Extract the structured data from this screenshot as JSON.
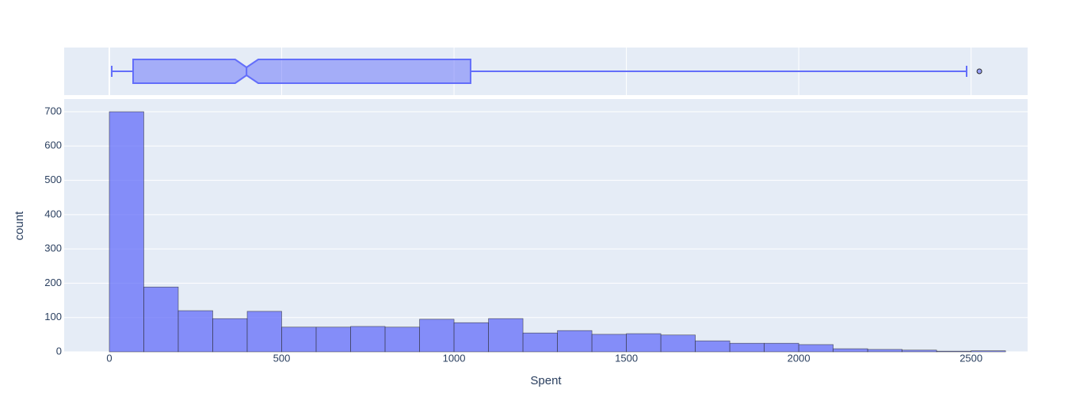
{
  "chart_data": {
    "type": "histogram",
    "x_label": "Spent",
    "y_label": "count",
    "color": "#636efa",
    "grid": true,
    "bins": [
      0,
      100,
      200,
      300,
      400,
      500,
      600,
      700,
      800,
      900,
      1000,
      1100,
      1200,
      1300,
      1400,
      1500,
      1600,
      1700,
      1800,
      1900,
      2000,
      2100,
      2200,
      2300,
      2400,
      2500,
      2600
    ],
    "values": [
      700,
      189,
      120,
      97,
      118,
      72,
      72,
      74,
      72,
      95,
      85,
      97,
      55,
      62,
      51,
      53,
      49,
      32,
      25,
      25,
      21,
      9,
      7,
      5,
      2,
      3
    ],
    "xlim": [
      -131,
      2664
    ],
    "xticks": [
      0,
      500,
      1000,
      1500,
      2000,
      2500
    ],
    "ylim": [
      0,
      737
    ],
    "yticks": [
      0,
      100,
      200,
      300,
      400,
      500,
      600,
      700
    ],
    "box": {
      "min": 7,
      "q1": 69,
      "notch_low": 365,
      "median": 398,
      "notch_high": 432,
      "q3": 1048,
      "max": 2487,
      "outliers": [
        2524
      ]
    }
  }
}
